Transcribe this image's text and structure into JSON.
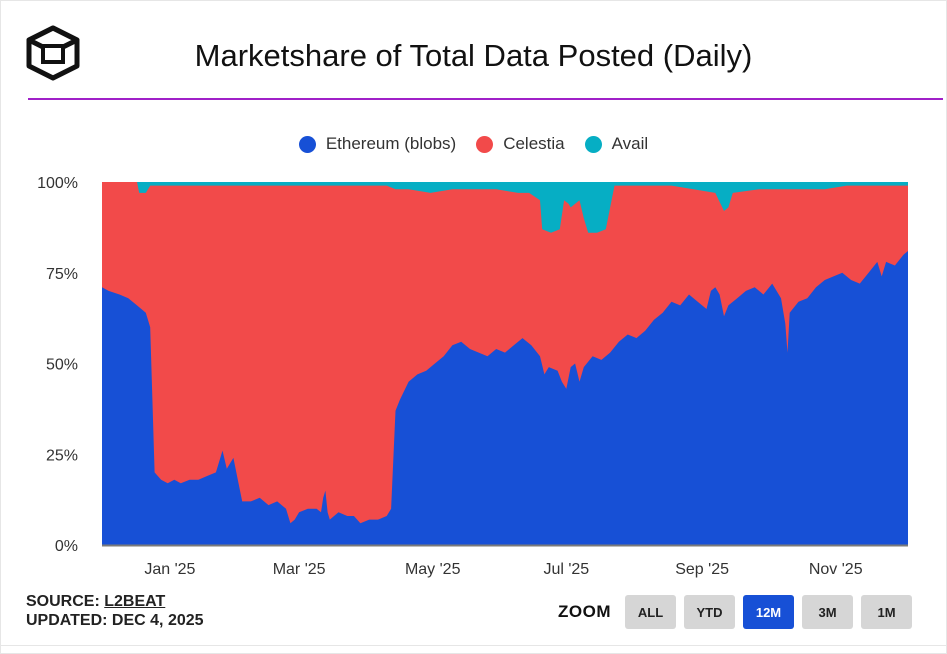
{
  "header": {
    "title": "Marketshare of Total Data Posted (Daily)",
    "logo": "l2beat-cube-logo",
    "rule_color": "#a020c8"
  },
  "legend": [
    {
      "label": "Ethereum (blobs)",
      "color": "#1750d6"
    },
    {
      "label": "Celestia",
      "color": "#f24a4a"
    },
    {
      "label": "Avail",
      "color": "#06aec4"
    }
  ],
  "chart_data": {
    "type": "area",
    "stacked": true,
    "title": "Marketshare of Total Data Posted (Daily)",
    "ylim": [
      0,
      100
    ],
    "y_ticks": [
      "0%",
      "25%",
      "50%",
      "75%",
      "100%"
    ],
    "x_ticks": [
      {
        "label": "Jan '25",
        "day": 31
      },
      {
        "label": "Mar '25",
        "day": 90
      },
      {
        "label": "May '25",
        "day": 151
      },
      {
        "label": "Jul '25",
        "day": 212
      },
      {
        "label": "Sep '25",
        "day": 274
      },
      {
        "label": "Nov '25",
        "day": 335
      }
    ],
    "x_range_days": [
      0,
      368
    ],
    "series": [
      {
        "name": "Ethereum (blobs)",
        "color": "#1750d6",
        "points": [
          [
            0,
            71
          ],
          [
            3,
            70
          ],
          [
            8,
            69
          ],
          [
            12,
            68
          ],
          [
            16,
            66
          ],
          [
            20,
            64
          ],
          [
            22,
            60
          ],
          [
            23,
            40
          ],
          [
            24,
            20
          ],
          [
            27,
            18
          ],
          [
            30,
            17
          ],
          [
            33,
            18
          ],
          [
            36,
            17
          ],
          [
            40,
            18
          ],
          [
            44,
            18
          ],
          [
            48,
            19
          ],
          [
            52,
            20
          ],
          [
            55,
            26
          ],
          [
            57,
            21
          ],
          [
            60,
            24
          ],
          [
            62,
            18
          ],
          [
            64,
            12
          ],
          [
            68,
            12
          ],
          [
            72,
            13
          ],
          [
            76,
            11
          ],
          [
            80,
            12
          ],
          [
            84,
            10
          ],
          [
            86,
            6
          ],
          [
            88,
            7
          ],
          [
            90,
            9
          ],
          [
            94,
            10
          ],
          [
            98,
            10
          ],
          [
            100,
            9
          ],
          [
            101,
            13
          ],
          [
            102,
            15
          ],
          [
            103,
            9
          ],
          [
            104,
            7
          ],
          [
            108,
            9
          ],
          [
            112,
            8
          ],
          [
            115,
            8
          ],
          [
            118,
            6
          ],
          [
            122,
            7
          ],
          [
            126,
            7
          ],
          [
            130,
            8
          ],
          [
            132,
            10
          ],
          [
            134,
            37
          ],
          [
            136,
            40
          ],
          [
            140,
            45
          ],
          [
            144,
            47
          ],
          [
            148,
            48
          ],
          [
            152,
            50
          ],
          [
            156,
            52
          ],
          [
            160,
            55
          ],
          [
            164,
            56
          ],
          [
            168,
            54
          ],
          [
            172,
            53
          ],
          [
            176,
            52
          ],
          [
            180,
            54
          ],
          [
            184,
            53
          ],
          [
            188,
            55
          ],
          [
            192,
            57
          ],
          [
            196,
            55
          ],
          [
            200,
            52
          ],
          [
            202,
            47
          ],
          [
            204,
            49
          ],
          [
            208,
            48
          ],
          [
            210,
            45
          ],
          [
            212,
            43
          ],
          [
            214,
            49
          ],
          [
            216,
            50
          ],
          [
            218,
            45
          ],
          [
            220,
            49
          ],
          [
            224,
            52
          ],
          [
            228,
            51
          ],
          [
            232,
            53
          ],
          [
            236,
            56
          ],
          [
            240,
            58
          ],
          [
            244,
            57
          ],
          [
            248,
            59
          ],
          [
            252,
            62
          ],
          [
            256,
            64
          ],
          [
            260,
            67
          ],
          [
            264,
            66
          ],
          [
            268,
            69
          ],
          [
            272,
            67
          ],
          [
            276,
            65
          ],
          [
            278,
            70
          ],
          [
            280,
            71
          ],
          [
            282,
            69
          ],
          [
            284,
            63
          ],
          [
            286,
            66
          ],
          [
            290,
            68
          ],
          [
            294,
            70
          ],
          [
            298,
            71
          ],
          [
            302,
            69
          ],
          [
            306,
            72
          ],
          [
            310,
            68
          ],
          [
            312,
            61
          ],
          [
            313,
            53
          ],
          [
            314,
            64
          ],
          [
            318,
            67
          ],
          [
            322,
            68
          ],
          [
            326,
            71
          ],
          [
            330,
            73
          ],
          [
            334,
            74
          ],
          [
            338,
            75
          ],
          [
            342,
            73
          ],
          [
            346,
            72
          ],
          [
            350,
            75
          ],
          [
            354,
            78
          ],
          [
            356,
            74
          ],
          [
            358,
            78
          ],
          [
            362,
            77
          ],
          [
            366,
            80
          ],
          [
            368,
            81
          ]
        ]
      },
      {
        "name": "Celestia",
        "color": "#f24a4a",
        "points": [
          [
            0,
            100
          ],
          [
            16,
            100
          ],
          [
            17,
            97
          ],
          [
            20,
            97
          ],
          [
            22,
            99
          ],
          [
            26,
            99
          ],
          [
            30,
            99
          ],
          [
            40,
            99
          ],
          [
            50,
            99
          ],
          [
            60,
            99
          ],
          [
            80,
            99
          ],
          [
            100,
            99
          ],
          [
            120,
            99
          ],
          [
            130,
            99
          ],
          [
            134,
            98
          ],
          [
            140,
            98
          ],
          [
            150,
            97
          ],
          [
            160,
            98
          ],
          [
            170,
            98
          ],
          [
            180,
            98
          ],
          [
            190,
            97
          ],
          [
            195,
            97
          ],
          [
            200,
            95
          ],
          [
            201,
            87
          ],
          [
            205,
            86
          ],
          [
            209,
            87
          ],
          [
            211,
            95
          ],
          [
            213,
            94
          ],
          [
            214,
            93
          ],
          [
            218,
            95
          ],
          [
            220,
            90
          ],
          [
            222,
            86
          ],
          [
            226,
            86
          ],
          [
            230,
            87
          ],
          [
            234,
            99
          ],
          [
            240,
            99
          ],
          [
            250,
            99
          ],
          [
            260,
            99
          ],
          [
            270,
            98
          ],
          [
            280,
            97
          ],
          [
            284,
            92
          ],
          [
            286,
            93
          ],
          [
            288,
            97
          ],
          [
            300,
            98
          ],
          [
            310,
            98
          ],
          [
            320,
            98
          ],
          [
            330,
            98
          ],
          [
            340,
            99
          ],
          [
            350,
            99
          ],
          [
            360,
            99
          ],
          [
            368,
            99
          ]
        ]
      },
      {
        "name": "Avail",
        "color": "#06aec4",
        "points": [
          [
            0,
            100
          ],
          [
            368,
            100
          ]
        ]
      }
    ]
  },
  "footer": {
    "source_label": "SOURCE:",
    "source_link": "L2BEAT",
    "updated": "UPDATED: DEC 4, 2025"
  },
  "zoom": {
    "label": "ZOOM",
    "options": [
      "ALL",
      "YTD",
      "12M",
      "3M",
      "1M"
    ],
    "selected": "12M",
    "active_color": "#1750d6"
  }
}
